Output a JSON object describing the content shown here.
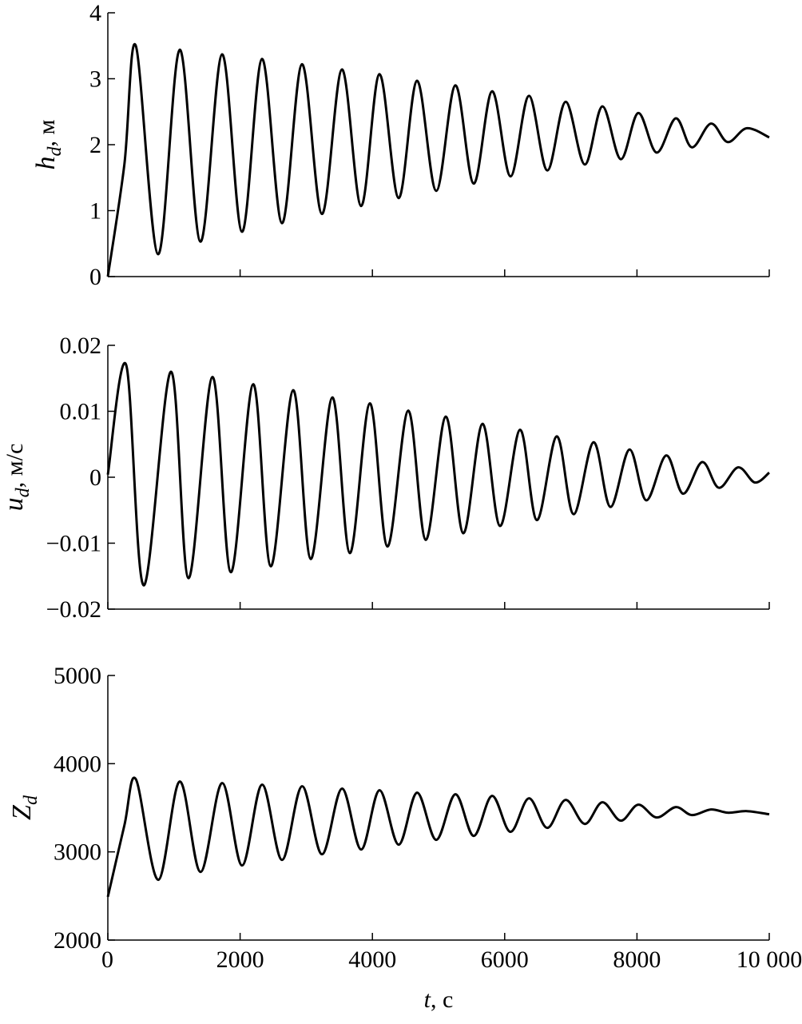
{
  "chart_data": [
    {
      "type": "line",
      "ylabel": {
        "main": "h",
        "sub": "d",
        "unit": ", м"
      },
      "x": [
        0,
        250,
        423,
        761,
        1087,
        1401,
        1727,
        2029,
        2331,
        2633,
        2935,
        3237,
        3539,
        3829,
        4106,
        4396,
        4674,
        4964,
        5254,
        5531,
        5809,
        6087,
        6365,
        6643,
        6920,
        7210,
        7476,
        7754,
        8019,
        8297,
        8587,
        8829,
        9118,
        9372,
        9662,
        10000
      ],
      "values": [
        0,
        1.7,
        3.5,
        0.34,
        3.44,
        0.53,
        3.37,
        0.68,
        3.3,
        0.81,
        3.22,
        0.95,
        3.14,
        1.07,
        3.07,
        1.19,
        2.97,
        1.3,
        2.9,
        1.41,
        2.81,
        1.52,
        2.74,
        1.61,
        2.65,
        1.7,
        2.58,
        1.78,
        2.48,
        1.88,
        2.4,
        1.96,
        2.32,
        2.04,
        2.25,
        2.11
      ],
      "color": "#000000",
      "xlim": [
        0,
        10000
      ],
      "ylim": [
        0,
        4
      ],
      "xticks": [
        0,
        2000,
        4000,
        6000,
        8000,
        {
          "value": 10000,
          "label": "10 000"
        }
      ],
      "xtick_labels": false,
      "yticks": [
        0,
        1,
        2,
        3,
        4
      ]
    },
    {
      "type": "line",
      "ylabel": {
        "main": "u",
        "sub": "d",
        "unit": ", м/с"
      },
      "x": [
        0,
        278,
        543,
        954,
        1220,
        1582,
        1860,
        2198,
        2464,
        2802,
        3068,
        3394,
        3659,
        3961,
        4227,
        4541,
        4807,
        5109,
        5374,
        5664,
        5930,
        6232,
        6486,
        6787,
        7041,
        7343,
        7597,
        7886,
        8140,
        8442,
        8696,
        8986,
        9239,
        9529,
        9783,
        10000
      ],
      "values": [
        0.0004,
        0.017,
        -0.0164,
        0.016,
        -0.0153,
        0.0152,
        -0.0144,
        0.0141,
        -0.0135,
        0.0132,
        -0.0124,
        0.0121,
        -0.0115,
        0.0112,
        -0.0105,
        0.0101,
        -0.0095,
        0.0092,
        -0.0085,
        0.0081,
        -0.0074,
        0.0072,
        -0.0065,
        0.0062,
        -0.0056,
        0.0053,
        -0.0045,
        0.0042,
        -0.0035,
        0.0033,
        -0.0025,
        0.0023,
        -0.0016,
        0.0015,
        -0.0008,
        0.0007
      ],
      "color": "#000000",
      "xlim": [
        0,
        10000
      ],
      "ylim": [
        -0.02,
        0.02
      ],
      "xticks": [
        0,
        2000,
        4000,
        6000,
        8000,
        {
          "value": 10000,
          "label": "10 000"
        }
      ],
      "xtick_labels": false,
      "yticks": [
        {
          "value": -0.02,
          "label": "−0.02"
        },
        {
          "value": -0.01,
          "label": "−0.01"
        },
        0,
        0.01,
        0.02
      ]
    },
    {
      "type": "line",
      "ylabel": {
        "main": "Z",
        "sub": "d",
        "unit": ""
      },
      "xlabel": {
        "main": "t",
        "unit": ", с"
      },
      "x": [
        0,
        250,
        423,
        761,
        1087,
        1401,
        1727,
        2029,
        2331,
        2633,
        2935,
        3237,
        3539,
        3829,
        4106,
        4396,
        4674,
        4964,
        5254,
        5531,
        5809,
        6087,
        6365,
        6643,
        6920,
        7210,
        7476,
        7754,
        8019,
        8297,
        8587,
        8829,
        9118,
        9372,
        9662,
        10000
      ],
      "values": [
        2490,
        3300,
        3825,
        2683,
        3798,
        2773,
        3780,
        2846,
        3762,
        2909,
        3744,
        2973,
        3717,
        3027,
        3698,
        3082,
        3671,
        3136,
        3653,
        3181,
        3635,
        3227,
        3607,
        3272,
        3589,
        3317,
        3562,
        3354,
        3535,
        3390,
        3508,
        3417,
        3481,
        3444,
        3462,
        3426
      ],
      "color": "#000000",
      "xlim": [
        0,
        10000
      ],
      "ylim": [
        2000,
        5000
      ],
      "xticks": [
        0,
        2000,
        4000,
        6000,
        8000,
        {
          "value": 10000,
          "label": "10 000"
        }
      ],
      "xtick_labels": true,
      "yticks": [
        2000,
        3000,
        4000,
        5000
      ]
    }
  ]
}
